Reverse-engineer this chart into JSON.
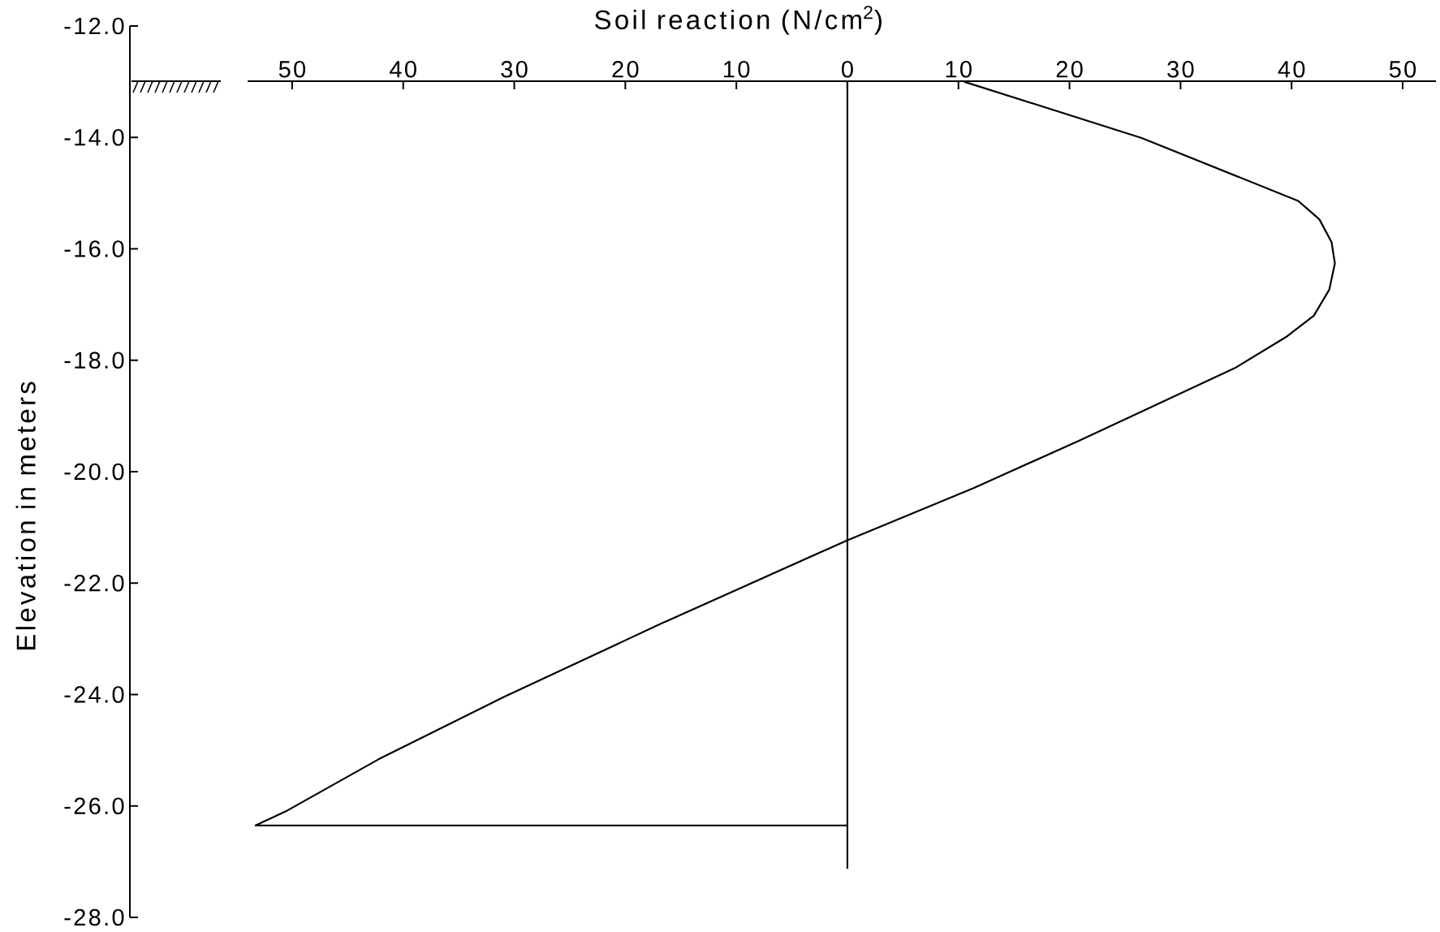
{
  "chart_data": {
    "type": "line",
    "xlabel": "Soil reaction (N/cm$^{2}$)",
    "ylabel": "Elevation in meters",
    "xlim": [
      -54,
      53
    ],
    "xticks": [
      {
        "value": -50,
        "label": "50"
      },
      {
        "value": -40,
        "label": "40"
      },
      {
        "value": -30,
        "label": "30"
      },
      {
        "value": -20,
        "label": "20"
      },
      {
        "value": -10,
        "label": "10"
      },
      0,
      10,
      20,
      30,
      40,
      50
    ],
    "ylim": [
      -28,
      -12
    ],
    "yticks": [
      {
        "value": -28,
        "label": "-28.0"
      },
      {
        "value": -26,
        "label": "-26.0"
      },
      {
        "value": -24,
        "label": "-24.0"
      },
      {
        "value": -22,
        "label": "-22.0"
      },
      {
        "value": -20,
        "label": "-20.0"
      },
      {
        "value": -18,
        "label": "-18.0"
      },
      {
        "value": -16,
        "label": "-16.0"
      },
      {
        "value": -14,
        "label": "-14.0"
      },
      {
        "value": -12,
        "label": "-12.0"
      }
    ],
    "series": [
      {
        "color": "#000000",
        "x": [
          10.5,
          26.5,
          40.6,
          42.5,
          43.6,
          43.9,
          43.4,
          42.0,
          39.6,
          34.9,
          20.8,
          11.4,
          0,
          -16.8,
          -30.9,
          -42.2,
          -50.6,
          -53.3,
          0
        ],
        "values": [
          -13.0,
          -14.01,
          -15.14,
          -15.47,
          -15.88,
          -16.26,
          -16.73,
          -17.2,
          -17.57,
          -18.14,
          -19.45,
          -20.29,
          -21.23,
          -22.73,
          -24.04,
          -25.16,
          -26.1,
          -26.35,
          -26.35
        ]
      }
    ],
    "ref_lines": [
      {
        "axis": "x",
        "value": 0,
        "color": "#000000"
      }
    ]
  }
}
